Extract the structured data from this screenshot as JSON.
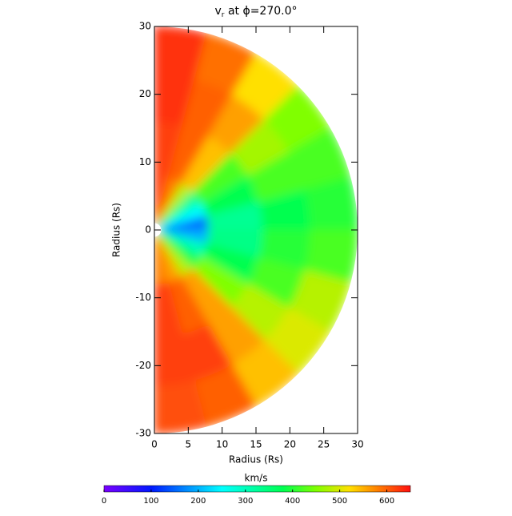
{
  "chart_data": {
    "type": "polar-heatmap",
    "title_var": "v",
    "title_sub": "r",
    "title_rest": "at ϕ=270.0°",
    "x_label": "Radius (Rs)",
    "y_label": "Radius (Rs)",
    "xlim": [
      0,
      30
    ],
    "ylim": [
      -30,
      30
    ],
    "xticks": [
      0,
      5,
      10,
      15,
      20,
      25,
      30
    ],
    "yticks": [
      -30,
      -20,
      -10,
      0,
      10,
      20,
      30
    ],
    "field": {
      "r_edges": [
        1,
        8,
        16,
        23,
        30
      ],
      "theta_edges": [
        90,
        75,
        60,
        45,
        30,
        15,
        0,
        -15,
        -30,
        -45,
        -60,
        -75,
        -90
      ],
      "values": [
        [
          620,
          620,
          630,
          630
        ],
        [
          580,
          600,
          600,
          590
        ],
        [
          480,
          540,
          560,
          520
        ],
        [
          330,
          420,
          470,
          450
        ],
        [
          250,
          380,
          420,
          420
        ],
        [
          150,
          330,
          380,
          400
        ],
        [
          200,
          340,
          400,
          420
        ],
        [
          300,
          380,
          420,
          480
        ],
        [
          380,
          450,
          480,
          500
        ],
        [
          480,
          560,
          560,
          540
        ],
        [
          560,
          600,
          620,
          600
        ],
        [
          580,
          620,
          620,
          610
        ]
      ]
    },
    "colorbar": {
      "label": "km/s",
      "lim": [
        0,
        650
      ],
      "ticks": [
        0,
        100,
        200,
        300,
        400,
        500,
        600
      ]
    },
    "colormap": [
      {
        "value": 0,
        "color": "#7a00ff"
      },
      {
        "value": 100,
        "color": "#0018ff"
      },
      {
        "value": 250,
        "color": "#00ffff"
      },
      {
        "value": 380,
        "color": "#00ff50"
      },
      {
        "value": 450,
        "color": "#80ff00"
      },
      {
        "value": 520,
        "color": "#ffe000"
      },
      {
        "value": 580,
        "color": "#ff8000"
      },
      {
        "value": 650,
        "color": "#ff1010"
      }
    ]
  }
}
